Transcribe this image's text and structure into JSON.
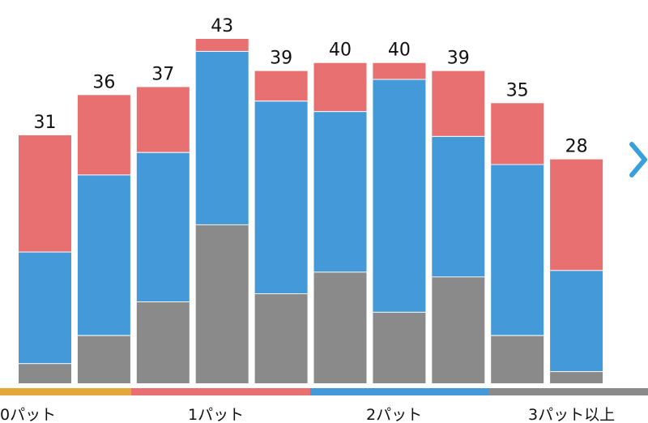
{
  "chart_data": {
    "type": "bar",
    "stacked": true,
    "categories": [
      "",
      "",
      "",
      "",
      "",
      "",
      "",
      "",
      "",
      ""
    ],
    "totals": [
      31,
      36,
      37,
      43,
      39,
      40,
      40,
      39,
      35,
      28
    ],
    "series": [
      {
        "key": "three_plus",
        "color": "#8a8a8a",
        "values": [
          2.5,
          6.0,
          10.2,
          19.8,
          11.2,
          13.9,
          8.9,
          13.3,
          6.0,
          1.5
        ]
      },
      {
        "key": "two",
        "color": "#4499d9",
        "values": [
          13.9,
          20.0,
          18.6,
          21.6,
          24.0,
          20.0,
          29.0,
          17.5,
          21.3,
          12.6
        ]
      },
      {
        "key": "one",
        "color": "#e87070",
        "values": [
          14.6,
          10.0,
          8.2,
          1.6,
          3.8,
          6.1,
          2.1,
          8.2,
          7.7,
          13.9
        ]
      }
    ],
    "ylim": [
      0,
      43
    ]
  },
  "legend": [
    {
      "label": "0パット",
      "color": "#e3a83a"
    },
    {
      "label": "1パット",
      "color": "#e87070"
    },
    {
      "label": "2パット",
      "color": "#4499d9"
    },
    {
      "label": "3パット以上",
      "color": "#8a8a8a"
    }
  ],
  "nav": {
    "next_icon": "chevron-right-icon",
    "color": "#3aa0dc"
  }
}
